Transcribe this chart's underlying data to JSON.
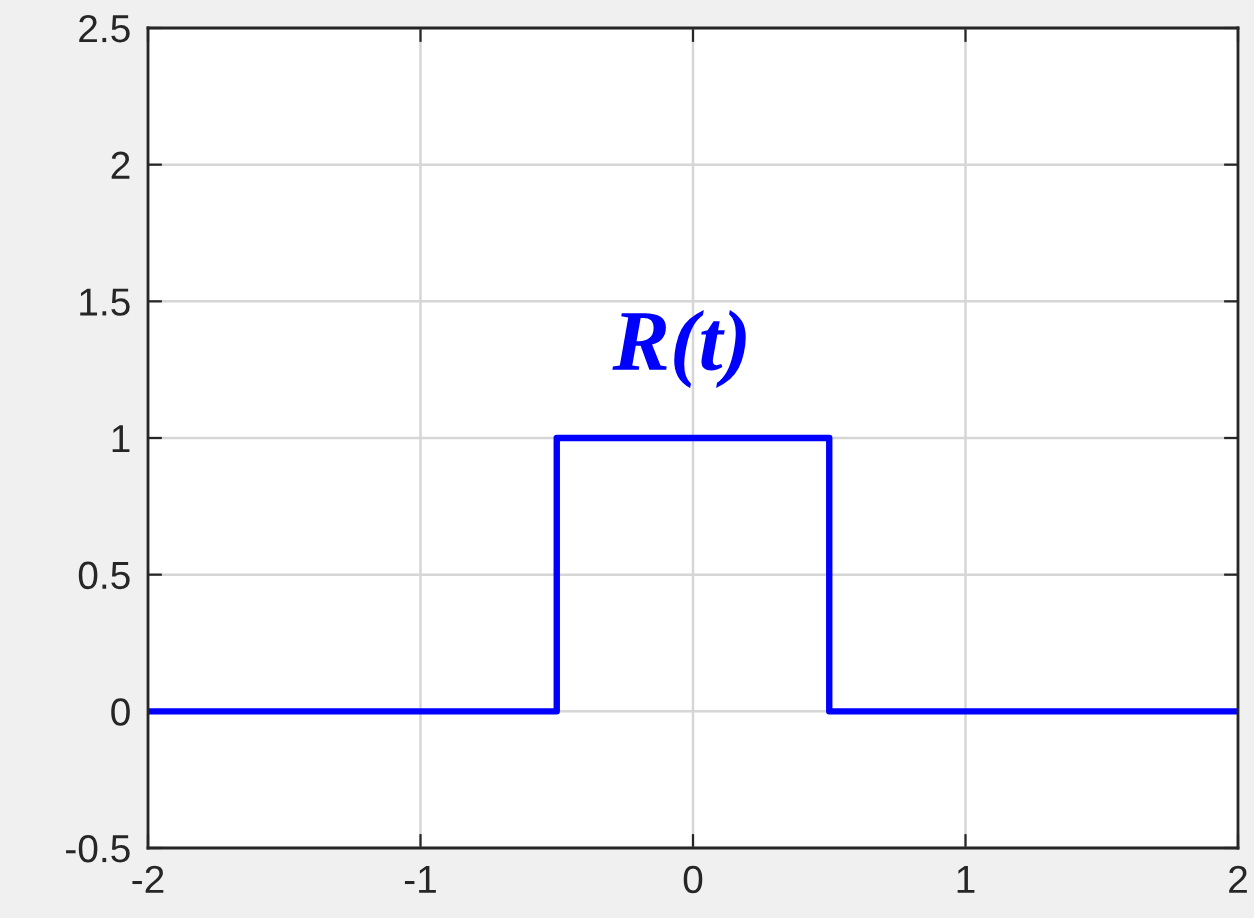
{
  "chart_data": {
    "type": "step",
    "series": [
      {
        "name": "R(t)",
        "color": "#0000ff",
        "x": [
          -2,
          -0.5,
          0.5,
          2
        ],
        "values": [
          0,
          1,
          0,
          0
        ]
      }
    ],
    "xlim": [
      -2,
      2
    ],
    "ylim": [
      -0.5,
      2.5
    ],
    "xticks": [
      -2,
      -1,
      0,
      1,
      2
    ],
    "yticks": [
      -0.5,
      0,
      0.5,
      1,
      1.5,
      2,
      2.5
    ],
    "grid": true
  }
}
